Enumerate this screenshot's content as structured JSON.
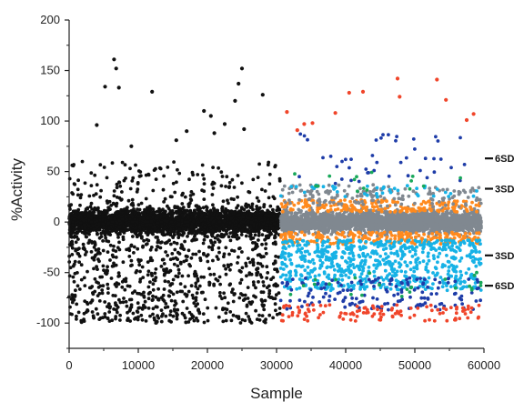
{
  "chart_data": {
    "type": "scatter",
    "title": "",
    "xlabel": "Sample",
    "ylabel": "%Activity",
    "xlim": [
      0,
      60000
    ],
    "ylim": [
      -125,
      200
    ],
    "x_ticks": [
      0,
      10000,
      20000,
      30000,
      40000,
      50000,
      60000
    ],
    "y_ticks": [
      -100,
      -50,
      0,
      50,
      100,
      150,
      200
    ],
    "grid": false,
    "legend": "none",
    "colors": {
      "black": "#111111",
      "grey": "#808890",
      "orange": "#ff8a1e",
      "cyan": "#17b2e6",
      "blue": "#1e3ca8",
      "green": "#19a85a",
      "red": "#f0452a"
    },
    "outlier_points": [
      {
        "x": 6500,
        "y": 161,
        "color": "black"
      },
      {
        "x": 6800,
        "y": 152,
        "color": "black"
      },
      {
        "x": 7200,
        "y": 133,
        "color": "black"
      },
      {
        "x": 5200,
        "y": 134,
        "color": "black"
      },
      {
        "x": 12000,
        "y": 129,
        "color": "black"
      },
      {
        "x": 25000,
        "y": 152,
        "color": "black"
      },
      {
        "x": 24500,
        "y": 137,
        "color": "black"
      },
      {
        "x": 24000,
        "y": 120,
        "color": "black"
      },
      {
        "x": 28000,
        "y": 126,
        "color": "black"
      },
      {
        "x": 19500,
        "y": 110,
        "color": "black"
      },
      {
        "x": 20500,
        "y": 105,
        "color": "black"
      },
      {
        "x": 4000,
        "y": 96,
        "color": "black"
      },
      {
        "x": 9000,
        "y": 75,
        "color": "black"
      },
      {
        "x": 15500,
        "y": 81,
        "color": "black"
      },
      {
        "x": 22500,
        "y": 97,
        "color": "black"
      },
      {
        "x": 17000,
        "y": 90,
        "color": "black"
      },
      {
        "x": 21000,
        "y": 88,
        "color": "black"
      },
      {
        "x": 25300,
        "y": 92,
        "color": "black"
      },
      {
        "x": 47500,
        "y": 142,
        "color": "red"
      },
      {
        "x": 53200,
        "y": 141,
        "color": "red"
      },
      {
        "x": 42500,
        "y": 129,
        "color": "red"
      },
      {
        "x": 40500,
        "y": 128,
        "color": "red"
      },
      {
        "x": 47800,
        "y": 124,
        "color": "red"
      },
      {
        "x": 54500,
        "y": 121,
        "color": "red"
      },
      {
        "x": 57500,
        "y": 101,
        "color": "red"
      },
      {
        "x": 58500,
        "y": 107,
        "color": "red"
      },
      {
        "x": 31500,
        "y": 109,
        "color": "red"
      },
      {
        "x": 38500,
        "y": 108,
        "color": "red"
      },
      {
        "x": 34000,
        "y": 97,
        "color": "red"
      },
      {
        "x": 35200,
        "y": 98,
        "color": "red"
      },
      {
        "x": 33000,
        "y": 91,
        "color": "red"
      }
    ],
    "sd_markers": [
      {
        "label": "6SD",
        "y": 63
      },
      {
        "label": "3SD",
        "y": 33
      },
      {
        "label": "3SD",
        "y": -33
      },
      {
        "label": "6SD",
        "y": -63
      }
    ]
  }
}
